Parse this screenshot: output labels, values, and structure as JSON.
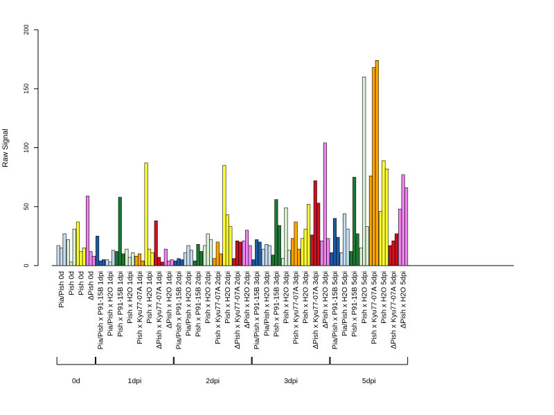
{
  "chart_data": {
    "type": "bar",
    "ylabel": "Raw Signal",
    "ylim": [
      0,
      200
    ],
    "yticks": [
      0,
      50,
      100,
      150,
      200
    ],
    "grid": false,
    "colors": {
      "lightblue": "#c6dbef",
      "darkblue": "#1f5aa6",
      "lightgreen": "#d9f0d3",
      "darkgreen": "#1b7a30",
      "yellow": "#ffff33",
      "orange": "#ffa500",
      "red": "#cc1122",
      "violet": "#ee82ee",
      "bar_outline": "#000000",
      "axis": "#000000"
    },
    "categories": [
      {
        "label": "Pia/Pish 0d",
        "color": "lightblue",
        "values": [
          17,
          15,
          27
        ]
      },
      {
        "label": "Pish 0d",
        "color": "lightgreen",
        "values": [
          22,
          3,
          31
        ]
      },
      {
        "label": "Pish 0d",
        "color": "yellow",
        "values": [
          37,
          12,
          15
        ]
      },
      {
        "label": "ΔPish 0d",
        "color": "violet",
        "values": [
          59,
          12,
          8
        ]
      },
      {
        "label": "Pia/Pish x P91-15B 1dpi",
        "color": "darkblue",
        "values": [
          25,
          4,
          5
        ]
      },
      {
        "label": "Pia/Pish x H2O 1dpi",
        "color": "lightblue",
        "values": [
          5,
          3,
          13
        ]
      },
      {
        "label": "Pish x P91-15B 1dpi",
        "color": "darkgreen",
        "values": [
          12,
          58,
          10
        ]
      },
      {
        "label": "Pish x H2O 1dpi",
        "color": "lightgreen",
        "values": [
          14,
          7,
          11
        ]
      },
      {
        "label": "Pish x Kyu77-07A 1dpi",
        "color": "orange",
        "values": [
          8,
          10,
          4
        ]
      },
      {
        "label": "Pish x H2O 1dpi",
        "color": "yellow",
        "values": [
          87,
          14,
          11
        ]
      },
      {
        "label": "ΔPish x Kyu77-07A 1dpi",
        "color": "red",
        "values": [
          38,
          7,
          3
        ]
      },
      {
        "label": "ΔPish x H2O 1dpi",
        "color": "violet",
        "values": [
          14,
          4,
          5
        ]
      },
      {
        "label": "Pia/Pish x P91-15B 2dpi",
        "color": "darkblue",
        "values": [
          4,
          6,
          5
        ]
      },
      {
        "label": "Pia/Pish x H2O 2dpi",
        "color": "lightblue",
        "values": [
          11,
          17,
          13
        ]
      },
      {
        "label": "Pish x P91-15B 2dpi",
        "color": "darkgreen",
        "values": [
          4,
          18,
          12
        ]
      },
      {
        "label": "Pish x H2O 2dpi",
        "color": "lightgreen",
        "values": [
          17,
          27,
          22
        ]
      },
      {
        "label": "Pish x Kyu77-07A 2dpi",
        "color": "orange",
        "values": [
          6,
          20,
          10
        ]
      },
      {
        "label": "Pish x H2O 2dpi",
        "color": "yellow",
        "values": [
          85,
          43,
          33
        ]
      },
      {
        "label": "ΔPish x Kyu77-07A 2dpi",
        "color": "red",
        "values": [
          6,
          21,
          20
        ]
      },
      {
        "label": "ΔPish x H2O 2dpi",
        "color": "violet",
        "values": [
          21,
          30,
          17
        ]
      },
      {
        "label": "Pia/Pish x P91-15B 3dpi",
        "color": "darkblue",
        "values": [
          5,
          22,
          20
        ]
      },
      {
        "label": "Pia/Pish x H2O 3dpi",
        "color": "lightblue",
        "values": [
          14,
          18,
          17
        ]
      },
      {
        "label": "Pish x P91-15B 3dpi",
        "color": "darkgreen",
        "values": [
          9,
          56,
          34
        ]
      },
      {
        "label": "Pish x H2O 3dpi",
        "color": "lightgreen",
        "values": [
          6,
          49,
          13
        ]
      },
      {
        "label": "Pish x Kyu77-07A 3dpi",
        "color": "orange",
        "values": [
          23,
          37,
          14
        ]
      },
      {
        "label": "Pish x H2O 3dpi",
        "color": "yellow",
        "values": [
          23,
          31,
          52
        ]
      },
      {
        "label": "ΔPish x Kyu77-07A 3dpi",
        "color": "red",
        "values": [
          26,
          72,
          53
        ]
      },
      {
        "label": "ΔPish x H2O 3dpi",
        "color": "violet",
        "values": [
          21,
          104,
          23
        ]
      },
      {
        "label": "Pia/Pish x P91-15B 5dpi",
        "color": "darkblue",
        "values": [
          11,
          40,
          24
        ]
      },
      {
        "label": "Pia/Pish x H2O 5dpi",
        "color": "lightblue",
        "values": [
          11,
          44,
          31
        ]
      },
      {
        "label": "Pish x P91-15B 5dpi",
        "color": "darkgreen",
        "values": [
          12,
          75,
          27
        ]
      },
      {
        "label": "Pish x H2O 5dpi",
        "color": "lightgreen",
        "values": [
          15,
          160,
          33
        ]
      },
      {
        "label": "Pish x Kyu77-07A 5dpi",
        "color": "orange",
        "values": [
          76,
          168,
          174
        ]
      },
      {
        "label": "Pish x H2O 5dpi",
        "color": "yellow",
        "values": [
          46,
          89,
          82
        ]
      },
      {
        "label": "ΔPish x Kyu77-07A 5dpi",
        "color": "red",
        "values": [
          17,
          21,
          27
        ]
      },
      {
        "label": "ΔPish x H2O 5dpi",
        "color": "violet",
        "values": [
          48,
          77,
          66
        ]
      }
    ],
    "groups": [
      {
        "label": "0d",
        "from": 0,
        "to": 3
      },
      {
        "label": "1dpi",
        "from": 4,
        "to": 11
      },
      {
        "label": "2dpi",
        "from": 12,
        "to": 19
      },
      {
        "label": "3dpi",
        "from": 20,
        "to": 27
      },
      {
        "label": "5dpi",
        "from": 28,
        "to": 35
      }
    ]
  }
}
